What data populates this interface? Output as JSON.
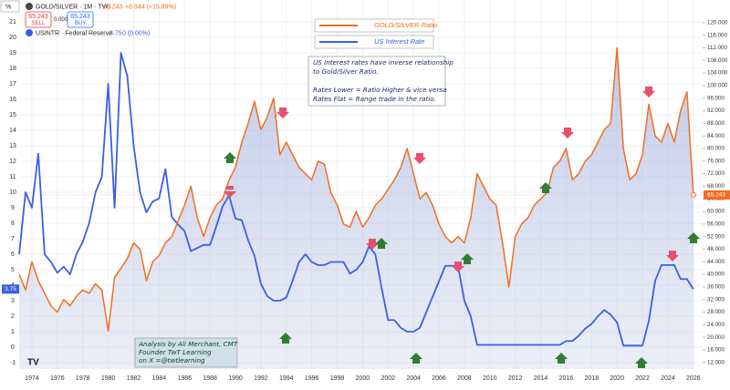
{
  "chart_data": {
    "type": "line",
    "header": {
      "scale_button": "%",
      "symbol": "GOLD/SILVER · 1M · TVC",
      "quote": "65.243",
      "change": "+8.944 (+15.89%)",
      "sell_label": "SELL",
      "spread": "0.000",
      "buy_label": "BUY",
      "symbol2": "USINTR · Federal Reserve",
      "quote2": "3.75",
      "change2": "0 (0.00%)"
    },
    "annotation": [
      "US Interest rates have inverse relationship",
      "to Gold/Silver Ratio.",
      "",
      "Rates Lower = Ratio Higher & vice versa",
      "Rates Flat = Range trade in the ratio."
    ],
    "credit": [
      "Analysis by Ali Merchant, CMT",
      "Founder TwT Learning",
      "on X =@twtlearning"
    ],
    "x": [
      1973.0,
      1973.5,
      1974.0,
      1974.5,
      1975.0,
      1975.5,
      1976.0,
      1976.5,
      1977.0,
      1977.5,
      1978.0,
      1978.5,
      1979.0,
      1979.5,
      1980.0,
      1980.5,
      1981.0,
      1981.5,
      1982.0,
      1982.5,
      1983.0,
      1983.5,
      1984.0,
      1984.5,
      1985.0,
      1985.5,
      1986.0,
      1986.5,
      1987.0,
      1987.5,
      1988.0,
      1988.5,
      1989.0,
      1989.5,
      1990.0,
      1990.5,
      1991.0,
      1991.5,
      1992.0,
      1992.5,
      1993.0,
      1993.5,
      1994.0,
      1994.5,
      1995.0,
      1995.5,
      1996.0,
      1996.5,
      1997.0,
      1997.5,
      1998.0,
      1998.5,
      1999.0,
      1999.5,
      2000.0,
      2000.5,
      2001.0,
      2001.5,
      2002.0,
      2002.5,
      2003.0,
      2003.5,
      2004.0,
      2004.5,
      2005.0,
      2005.5,
      2006.0,
      2006.5,
      2007.0,
      2007.5,
      2008.0,
      2008.5,
      2009.0,
      2009.5,
      2010.0,
      2010.5,
      2011.0,
      2011.5,
      2012.0,
      2012.5,
      2013.0,
      2013.5,
      2014.0,
      2014.5,
      2015.0,
      2015.5,
      2016.0,
      2016.5,
      2017.0,
      2017.5,
      2018.0,
      2018.5,
      2019.0,
      2019.5,
      2020.0,
      2020.5,
      2021.0,
      2021.5,
      2022.0,
      2022.5,
      2023.0,
      2023.5,
      2024.0,
      2024.5,
      2025.0,
      2025.5,
      2026.0
    ],
    "series": [
      {
        "name": "GOLD/SILVER Ratio",
        "color": "#f26d21",
        "axis": "y2",
        "area": true,
        "values": [
          40,
          35,
          44,
          38,
          34,
          30,
          28,
          32,
          30,
          33,
          35,
          34,
          37,
          35,
          22,
          39,
          42,
          45,
          50,
          48,
          38,
          44,
          46,
          50,
          52,
          57,
          62,
          68,
          58,
          52,
          58,
          62,
          64,
          70,
          74,
          82,
          88,
          95,
          86,
          90,
          96,
          78,
          82,
          78,
          74,
          72,
          70,
          76,
          75,
          66,
          62,
          56,
          55,
          60,
          55,
          58,
          62,
          64,
          67,
          70,
          74,
          80,
          72,
          64,
          66,
          62,
          56,
          52,
          50,
          52,
          50,
          58,
          72,
          68,
          64,
          62,
          50,
          36,
          52,
          56,
          58,
          62,
          64,
          66,
          74,
          76,
          80,
          70,
          72,
          76,
          78,
          82,
          86,
          88,
          112,
          80,
          70,
          72,
          78,
          94,
          84,
          82,
          88,
          82,
          92,
          98,
          65.243
        ]
      },
      {
        "name": "US Interest Rate",
        "color": "#3a5fe6",
        "axis": "y",
        "values": [
          6,
          10,
          9,
          12.5,
          6,
          5.5,
          4.8,
          5.2,
          4.7,
          6,
          6.8,
          8,
          10,
          11,
          17,
          9,
          19,
          17.5,
          13,
          10,
          8.7,
          9.4,
          9.6,
          11.5,
          8.4,
          7.9,
          7.5,
          6.2,
          6.4,
          6.6,
          6.6,
          7.8,
          9.1,
          9.8,
          8.3,
          8.2,
          6.9,
          5.9,
          4.1,
          3.3,
          3,
          3,
          3.2,
          4.3,
          5.5,
          6,
          5.5,
          5.3,
          5.3,
          5.5,
          5.5,
          5.5,
          4.75,
          5,
          5.5,
          6.5,
          6,
          3.8,
          1.75,
          1.75,
          1.25,
          1,
          1,
          1.25,
          2.25,
          3.25,
          4.25,
          5.25,
          5.25,
          5.25,
          3,
          2,
          0.15,
          0.15,
          0.15,
          0.15,
          0.15,
          0.15,
          0.15,
          0.15,
          0.15,
          0.15,
          0.15,
          0.15,
          0.15,
          0.15,
          0.4,
          0.4,
          0.75,
          1.2,
          1.5,
          2,
          2.4,
          2.1,
          1.6,
          0.1,
          0.1,
          0.1,
          0.1,
          1.7,
          4.3,
          5.3,
          5.3,
          5.3,
          4.4,
          4.4,
          3.75
        ]
      }
    ],
    "xlim": [
      1973.07,
      2026.73
    ],
    "xticks": [
      1974,
      1976,
      1978,
      1980,
      1982,
      1984,
      1986,
      1988,
      1990,
      1992,
      1994,
      1996,
      1998,
      2000,
      2002,
      2004,
      2006,
      2008,
      2010,
      2012,
      2014,
      2016,
      2018,
      2020,
      2022,
      2024,
      2026
    ],
    "ylim": [
      -1.41,
      22.41
    ],
    "yticks": [
      -1,
      0,
      1,
      2,
      3,
      4,
      5,
      6,
      7,
      8,
      9,
      10,
      11,
      12,
      13,
      14,
      15,
      16,
      17,
      18,
      19,
      20,
      21
    ],
    "y2lim": [
      9.9,
      127.2
    ],
    "y2ticks": [
      {
        "value": 12,
        "label": "12.000"
      },
      {
        "value": 16,
        "label": "16.000"
      },
      {
        "value": 20,
        "label": "20.000"
      },
      {
        "value": 24,
        "label": "24.000"
      },
      {
        "value": 28,
        "label": "28.000"
      },
      {
        "value": 32,
        "label": "32.000"
      },
      {
        "value": 36,
        "label": "36.000"
      },
      {
        "value": 40,
        "label": "40.000"
      },
      {
        "value": 44,
        "label": "44.000"
      },
      {
        "value": 48,
        "label": "48.000"
      },
      {
        "value": 52,
        "label": "52.000"
      },
      {
        "value": 56,
        "label": "56.000"
      },
      {
        "value": 60,
        "label": "60.000"
      },
      {
        "value": 64,
        "label": "64.000"
      },
      {
        "value": 68,
        "label": "68.000"
      },
      {
        "value": 72,
        "label": "72.000"
      },
      {
        "value": 76,
        "label": "76.000"
      },
      {
        "value": 80,
        "label": "80.000"
      },
      {
        "value": 84,
        "label": "84.000"
      },
      {
        "value": 88,
        "label": "88.000"
      },
      {
        "value": 92,
        "label": "92.000"
      },
      {
        "value": 96,
        "label": "96.000"
      },
      {
        "value": 100,
        "label": "100.000"
      },
      {
        "value": 104,
        "label": "104.000"
      },
      {
        "value": 108,
        "label": "108.000"
      },
      {
        "value": 112,
        "label": "112.000"
      },
      {
        "value": 116,
        "label": "116.000"
      },
      {
        "value": 120,
        "label": "120.000"
      }
    ],
    "grid": true
  }
}
